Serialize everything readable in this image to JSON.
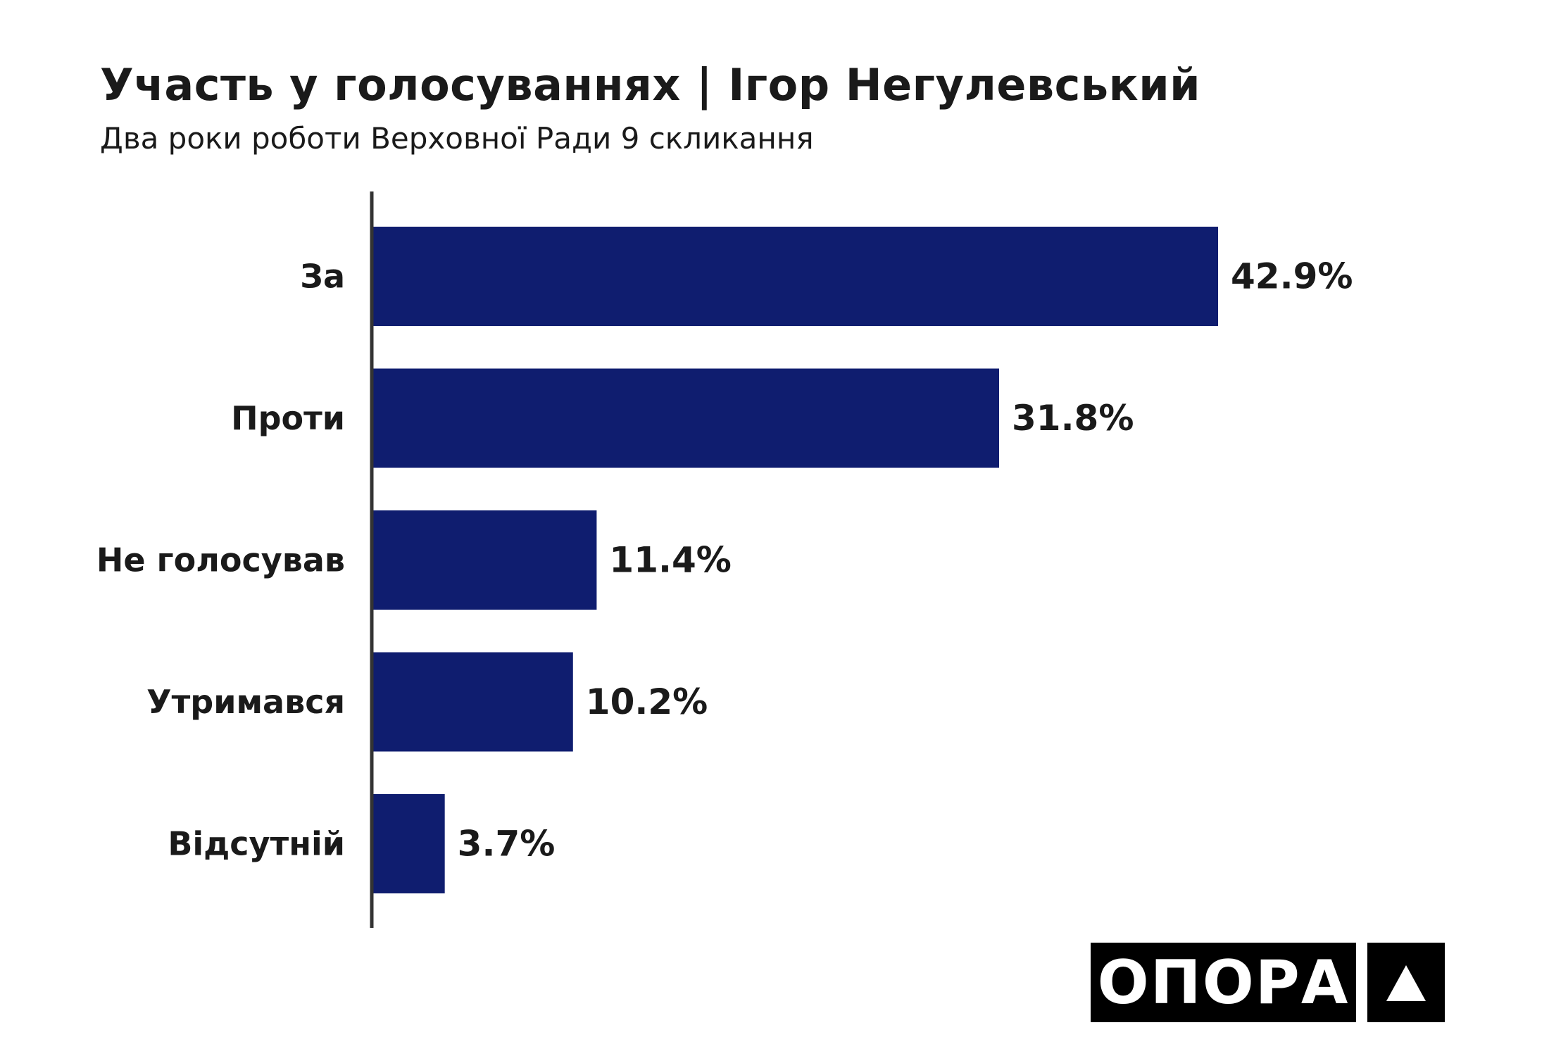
{
  "chart_data": {
    "type": "bar",
    "orientation": "horizontal",
    "title": "Участь у голосуваннях | Ігор Негулевський",
    "subtitle": "Два роки роботи Верховної Ради 9 скликання",
    "categories": [
      "За",
      "Проти",
      "Не голосував",
      "Утримався",
      "Відсутній"
    ],
    "values": [
      42.9,
      31.8,
      11.4,
      10.2,
      3.7
    ],
    "value_labels": [
      "42.9%",
      "31.8%",
      "11.4%",
      "10.2%",
      "3.7%"
    ],
    "unit": "%",
    "xlim": [
      0,
      42.9
    ],
    "grid": false,
    "legend": "none",
    "bar_color": "#0f1d6f"
  },
  "logo": {
    "text": "ОПОРА",
    "background": "#000000",
    "foreground": "#ffffff",
    "mark_icon": "triangle-icon"
  }
}
